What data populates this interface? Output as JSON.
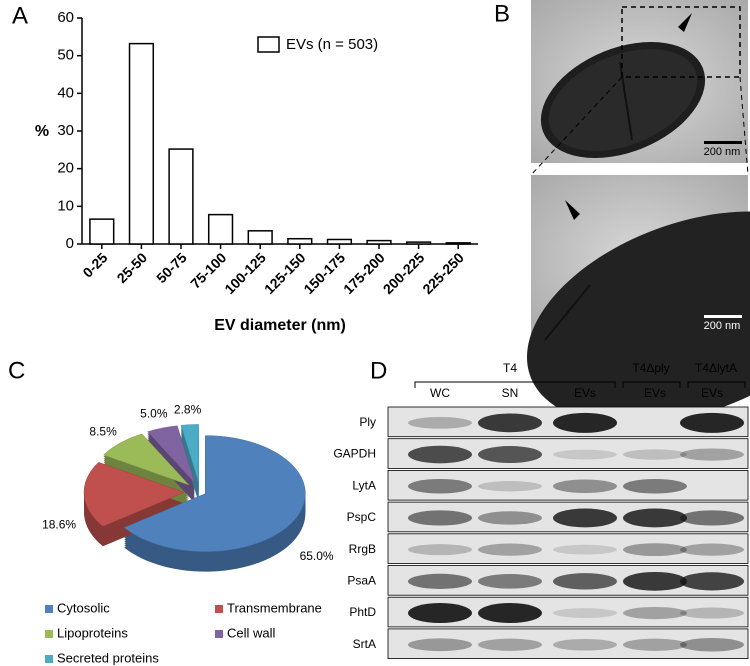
{
  "panel_labels": [
    "A",
    "B",
    "C",
    "D"
  ],
  "chart_data": [
    {
      "type": "bar",
      "ylabel": "%",
      "xlabel": "EV diameter (nm)",
      "categories": [
        "0-25",
        "25-50",
        "50-75",
        "75-100",
        "100-125",
        "125-150",
        "150-175",
        "175-200",
        "200-225",
        "225-250"
      ],
      "series": [
        {
          "name": "EVs (n = 503)",
          "color": "#ffffff",
          "values": [
            6.6,
            53.2,
            25.2,
            7.8,
            3.5,
            1.4,
            1.2,
            0.9,
            0.5,
            0.3
          ]
        }
      ],
      "ylim": [
        0,
        60
      ],
      "yticks": [
        0,
        10,
        20,
        30,
        40,
        50,
        60
      ],
      "legend": "upper right"
    },
    {
      "type": "pie",
      "categories": [
        "Cytosolic",
        "Transmembrane",
        "Lipoproteins",
        "Cell wall",
        "Secreted proteins"
      ],
      "values": [
        65.0,
        18.6,
        8.5,
        5.0,
        2.8
      ],
      "value_labels": [
        "65.0%",
        "18.6%",
        "8.5%",
        "5.0%",
        "2.8%"
      ],
      "colors": [
        "#4f81bd",
        "#c0504d",
        "#9bbb59",
        "#8064a2",
        "#4bacc6"
      ],
      "legend": "bottom"
    }
  ],
  "micrographs": {
    "scale_bars": [
      "200 nm",
      "200 nm"
    ]
  },
  "blot": {
    "groups": [
      "T4",
      "T4Δply",
      "T4ΔlytA"
    ],
    "lanes": [
      "WC",
      "SN",
      "EVs",
      "EVs",
      "EVs"
    ],
    "proteins": [
      "Ply",
      "GAPDH",
      "LytA",
      "PspC",
      "RrgB",
      "PsaA",
      "PhtD",
      "SrtA"
    ]
  }
}
